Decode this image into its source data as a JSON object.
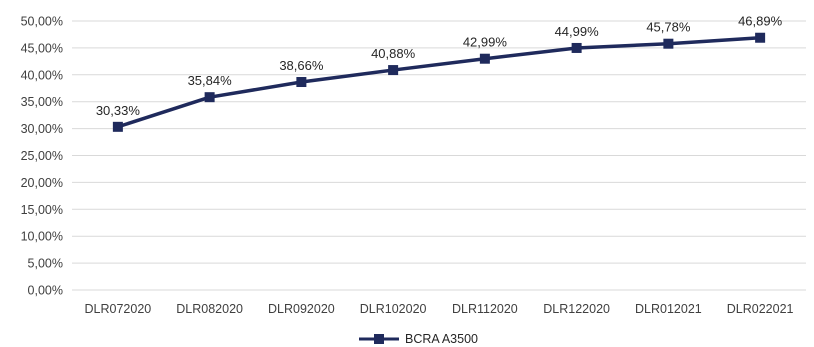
{
  "chart_data": {
    "type": "line",
    "categories": [
      "DLR072020",
      "DLR082020",
      "DLR092020",
      "DLR102020",
      "DLR112020",
      "DLR122020",
      "DLR012021",
      "DLR022021"
    ],
    "series": [
      {
        "name": "BCRA A3500",
        "values": [
          30.33,
          35.84,
          38.66,
          40.88,
          42.99,
          44.99,
          45.78,
          46.89
        ],
        "labels": [
          "30,33%",
          "35,84%",
          "38,66%",
          "40,88%",
          "42,99%",
          "44,99%",
          "45,78%",
          "46,89%"
        ],
        "color": "#1f2a5c",
        "marker": "square"
      }
    ],
    "ylim": [
      0,
      50
    ],
    "y_ticks": [
      0,
      5,
      10,
      15,
      20,
      25,
      30,
      35,
      40,
      45,
      50
    ],
    "y_tick_labels": [
      "0,00%",
      "5,00%",
      "10,00%",
      "15,00%",
      "20,00%",
      "25,00%",
      "30,00%",
      "35,00%",
      "40,00%",
      "45,00%",
      "50,00%"
    ],
    "grid": true,
    "grid_color": "#d9d9d9",
    "legend_position": "bottom"
  }
}
